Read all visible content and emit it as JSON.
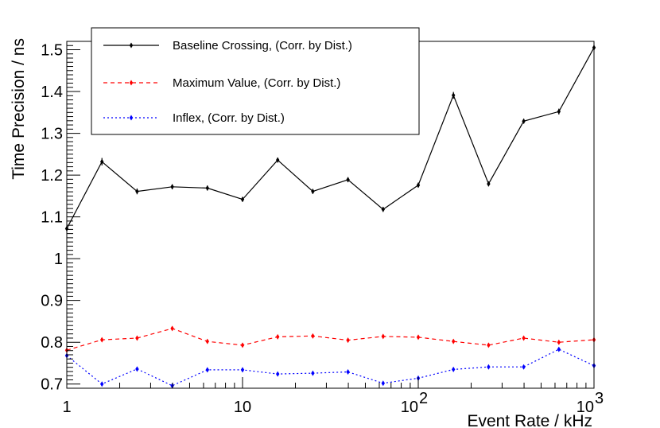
{
  "chart_data": {
    "type": "line",
    "xscale": "log",
    "xlabel": "Event Rate / kHz",
    "ylabel": "Time Precision / ns",
    "xlim": [
      1,
      1000
    ],
    "ylim": [
      0.69,
      1.52
    ],
    "xticks": [
      {
        "value": 1,
        "base": "1",
        "exp": ""
      },
      {
        "value": 10,
        "base": "10",
        "exp": ""
      },
      {
        "value": 100,
        "base": "10",
        "exp": "2"
      },
      {
        "value": 1000,
        "base": "10",
        "exp": "3"
      }
    ],
    "yticks": [
      0.7,
      0.8,
      0.9,
      1.0,
      1.1,
      1.2,
      1.3,
      1.4,
      1.5
    ],
    "ytick_labels": [
      "0.7",
      "0.8",
      "0.9",
      "1",
      "1.1",
      "1.2",
      "1.3",
      "1.4",
      "1.5"
    ],
    "x": [
      1,
      1.585,
      2.512,
      3.981,
      6.31,
      10,
      15.85,
      25.12,
      39.81,
      63.1,
      100,
      158.5,
      251.2,
      398.1,
      631,
      1000
    ],
    "series": [
      {
        "name": "Baseline Crossing, (Corr. by Dist.)",
        "color": "#000000",
        "dash": "",
        "values": [
          1.072,
          1.232,
          1.161,
          1.172,
          1.169,
          1.142,
          1.236,
          1.161,
          1.189,
          1.118,
          1.176,
          1.391,
          1.179,
          1.329,
          1.352,
          1.505
        ],
        "errors": [
          0.006,
          0.009,
          0.007,
          0.006,
          0.006,
          0.006,
          0.006,
          0.006,
          0.006,
          0.006,
          0.006,
          0.008,
          0.006,
          0.006,
          0.007,
          0.006
        ]
      },
      {
        "name": "Maximum Value, (Corr. by Dist.)",
        "color": "#ff0000",
        "dash": "5,4",
        "values": [
          0.781,
          0.806,
          0.81,
          0.833,
          0.802,
          0.793,
          0.813,
          0.815,
          0.805,
          0.814,
          0.812,
          0.802,
          0.793,
          0.81,
          0.8,
          0.806
        ],
        "errors": [
          0.004,
          0.004,
          0.004,
          0.004,
          0.004,
          0.004,
          0.004,
          0.004,
          0.004,
          0.004,
          0.004,
          0.004,
          0.004,
          0.004,
          0.004,
          0.004
        ]
      },
      {
        "name": "Inflex, (Corr. by Dist.)",
        "color": "#0000ff",
        "dash": "2,3",
        "values": [
          0.768,
          0.7,
          0.736,
          0.696,
          0.734,
          0.734,
          0.724,
          0.726,
          0.729,
          0.702,
          0.714,
          0.735,
          0.741,
          0.741,
          0.783,
          0.744
        ],
        "errors": [
          0.004,
          0.004,
          0.004,
          0.004,
          0.004,
          0.004,
          0.004,
          0.004,
          0.004,
          0.004,
          0.004,
          0.004,
          0.004,
          0.004,
          0.004,
          0.004
        ]
      }
    ],
    "legend_position": "top-left"
  }
}
